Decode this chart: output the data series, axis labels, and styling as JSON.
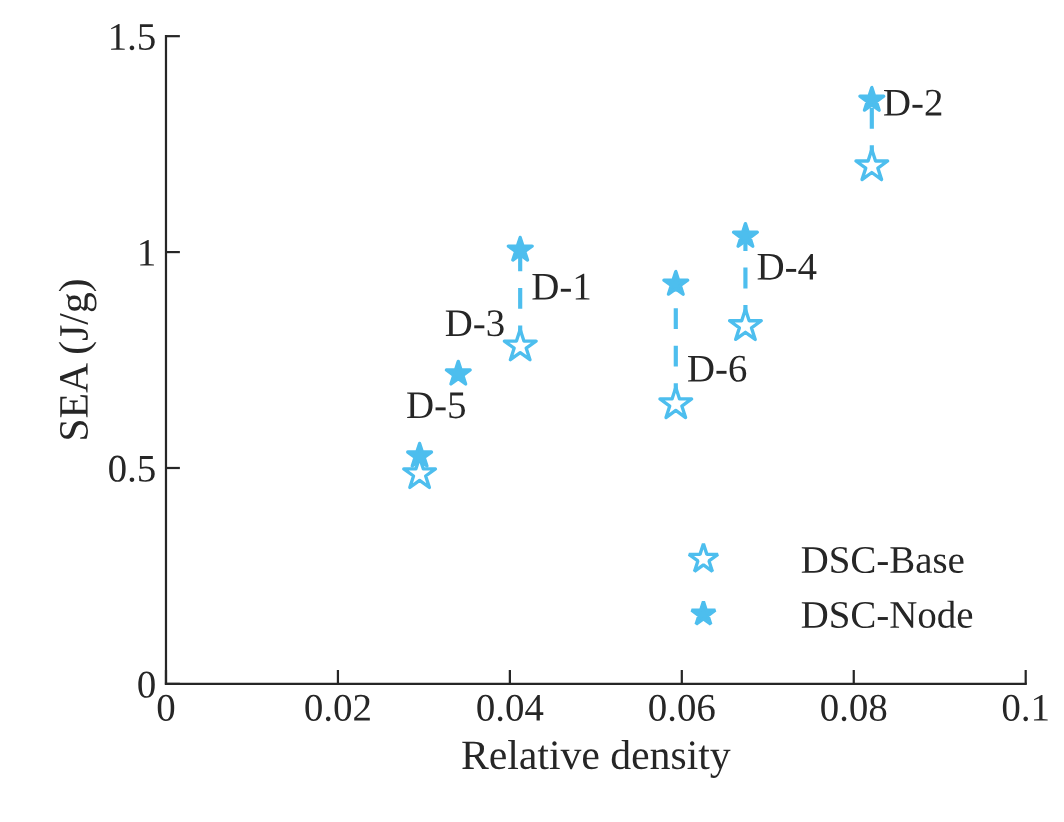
{
  "chart_data": {
    "type": "scatter",
    "xlabel": "Relative density",
    "ylabel": "SEA (J/g)",
    "xlim": [
      0,
      0.1
    ],
    "xticks": [
      0,
      0.02,
      0.04,
      0.06,
      0.08,
      0.1
    ],
    "ylim": [
      0,
      1.5
    ],
    "yticks": [
      0,
      0.5,
      1,
      1.5
    ],
    "grid": false,
    "legend": "bottom right",
    "series": [
      {
        "name": "DSC-Base",
        "marker": "star",
        "color": "#4dbeee",
        "x": [
          0.0412,
          0.0821,
          null,
          0.0674,
          0.0295,
          0.0593
        ],
        "values": [
          0.782,
          1.199,
          null,
          0.829,
          0.486,
          0.648
        ]
      },
      {
        "name": "DSC-Node",
        "marker": "star",
        "color": "#4dbeee",
        "x": [
          0.0412,
          0.0821,
          0.034,
          0.0674,
          0.0295,
          0.0593
        ],
        "values": [
          1.005,
          1.352,
          0.718,
          1.037,
          0.528,
          0.926
        ]
      },
      {
        "type": "line",
        "line_style": "dashed",
        "marker": "none",
        "color": "#4dbeee",
        "x": [
          0.0412,
          0.0412
        ],
        "values": [
          0.782,
          1.005
        ]
      },
      {
        "type": "line",
        "line_style": "dashed",
        "marker": "none",
        "color": "#4dbeee",
        "x": [
          0.0821,
          0.0821
        ],
        "values": [
          1.199,
          1.352
        ]
      },
      {
        "type": "line",
        "line_style": "dashed",
        "marker": "none",
        "color": "#4dbeee",
        "x": [
          0.0674,
          0.0674
        ],
        "values": [
          0.829,
          1.037
        ]
      },
      {
        "type": "line",
        "line_style": "dashed",
        "marker": "none",
        "color": "#4dbeee",
        "x": [
          0.0593,
          0.0593
        ],
        "values": [
          0.648,
          0.926
        ]
      }
    ],
    "annotations": [
      {
        "text": "D-1",
        "x": 0.0412,
        "y": 0.912
      },
      {
        "text": "D-2",
        "x": 0.0821,
        "y": 1.338
      },
      {
        "text": "D-3",
        "x": 0.034,
        "y": 0.718
      },
      {
        "text": "D-4",
        "x": 0.0674,
        "y": 0.958
      },
      {
        "text": "D-5",
        "x": 0.0295,
        "y": 0.528
      },
      {
        "text": "D-6",
        "x": 0.0593,
        "y": 0.722
      }
    ]
  }
}
